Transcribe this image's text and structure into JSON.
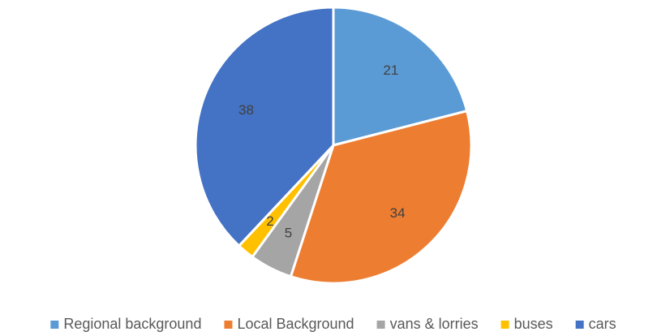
{
  "chart_data": {
    "type": "pie",
    "categories": [
      "Regional background",
      "Local Background",
      "vans & lorries",
      "buses",
      "cars"
    ],
    "values": [
      21,
      34,
      5,
      2,
      38
    ],
    "colors": [
      "#5b9bd5",
      "#ed7d31",
      "#a5a5a5",
      "#ffc000",
      "#4472c4"
    ],
    "legend": "bottom"
  }
}
